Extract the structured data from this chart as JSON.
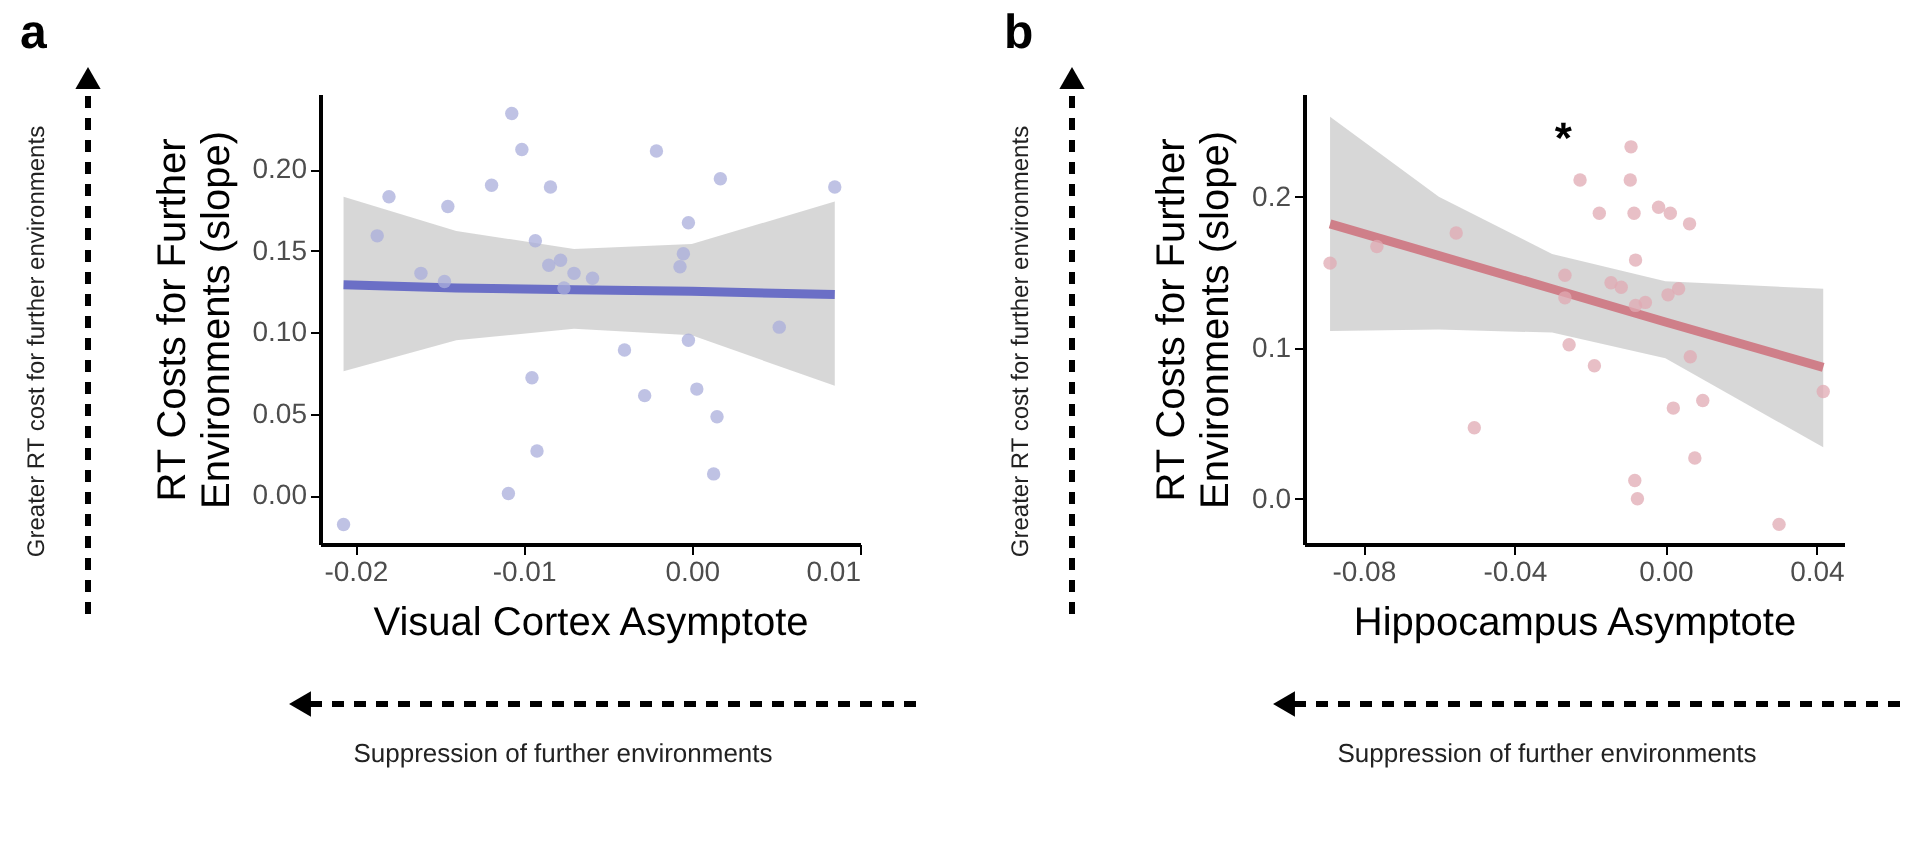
{
  "chart_data": [
    {
      "type": "scatter",
      "title": "a",
      "xlabel": "Visual Cortex Asymptote",
      "ylabel": "RT Costs for Further Environments (slope)",
      "xlim": [
        -0.0221,
        0.01
      ],
      "ylim": [
        -0.03,
        0.246
      ],
      "xticks": [
        -0.02,
        -0.01,
        {
          "value": 0,
          "label": "0.00"
        },
        0.01
      ],
      "yticks": [
        {
          "value": 0,
          "label": "0.00"
        },
        0.05,
        {
          "value": 0.1,
          "label": "0.10"
        },
        0.15,
        {
          "value": 0.2,
          "label": "0.20"
        }
      ],
      "grid": false,
      "annotations": [
        "Greater RT cost for further environments",
        "Suppression of further environments"
      ],
      "series": [
        {
          "type": "scatter",
          "color": "#aaaddb",
          "x": [
            -0.0207,
            -0.0187,
            -0.018,
            -0.0161,
            -0.0147,
            -0.0145,
            -0.0119,
            -0.0109,
            -0.0107,
            -0.0101,
            -0.0095,
            -0.0093,
            -0.0092,
            -0.0085,
            -0.0084,
            -0.0078,
            -0.0076,
            -0.007,
            -0.0059,
            -0.004,
            -0.0028,
            -0.0021,
            -0.0007,
            -0.0005,
            -0.0002,
            -0.0002,
            0.0003,
            0.0013,
            0.0015,
            0.0017,
            0.0052,
            0.0085
          ],
          "values": [
            -0.018,
            0.159,
            0.183,
            0.136,
            0.131,
            0.177,
            0.19,
            0.001,
            0.234,
            0.212,
            0.072,
            0.156,
            0.027,
            0.141,
            0.189,
            0.144,
            0.127,
            0.136,
            0.133,
            0.089,
            0.061,
            0.211,
            0.14,
            0.148,
            0.167,
            0.095,
            0.065,
            0.013,
            0.048,
            0.194,
            0.103,
            0.189
          ]
        },
        {
          "type": "line",
          "color": "#6b6fc6",
          "x": [
            -0.0207,
            -0.014,
            -0.007,
            0.0,
            0.0085
          ],
          "values": [
            0.129,
            0.127,
            0.126,
            0.125,
            0.123
          ],
          "lower": [
            0.076,
            0.095,
            0.102,
            0.098,
            0.067
          ],
          "upper": [
            0.183,
            0.162,
            0.151,
            0.154,
            0.18
          ]
        }
      ]
    },
    {
      "type": "scatter",
      "title": "b",
      "xlabel": "Hippocampus Asymptote",
      "ylabel": "RT Costs for Further Environments (slope)",
      "xlim": [
        -0.0957,
        0.0473
      ],
      "ylim": [
        -0.03,
        0.268
      ],
      "xticks": [
        -0.08,
        -0.04,
        {
          "value": 0,
          "label": "0.00"
        },
        0.04
      ],
      "yticks": [
        {
          "value": 0,
          "label": "0.0"
        },
        0.1,
        0.2
      ],
      "grid": false,
      "annotations": [
        "Greater RT cost for further environments",
        "Suppression of further environments",
        "*"
      ],
      "series": [
        {
          "type": "scatter",
          "color": "#e0a9b3",
          "x": [
            -0.0888,
            -0.0764,
            -0.0554,
            -0.0506,
            -0.0266,
            -0.0266,
            -0.0255,
            -0.0226,
            -0.0188,
            -0.0175,
            -0.0144,
            -0.0117,
            -0.0091,
            -0.0093,
            -0.0083,
            -0.0079,
            -0.0079,
            -0.0081,
            -0.0074,
            -0.0053,
            -0.0018,
            0.0007,
            0.0013,
            0.0021,
            0.0035,
            0.0064,
            0.0066,
            0.0078,
            0.0099,
            0.0301,
            0.0418
          ],
          "values": [
            0.156,
            0.167,
            0.176,
            0.047,
            0.148,
            0.133,
            0.102,
            0.211,
            0.088,
            0.189,
            0.143,
            0.14,
            0.233,
            0.211,
            0.189,
            0.158,
            0.128,
            0.012,
            0.0,
            0.13,
            0.193,
            0.135,
            0.189,
            0.06,
            0.139,
            0.182,
            0.094,
            0.027,
            0.065,
            -0.017,
            0.071
          ]
        },
        {
          "type": "line",
          "color": "#cf7f89",
          "x": [
            -0.0888,
            -0.06,
            -0.03,
            0.0,
            0.0418
          ],
          "values": [
            0.182,
            0.161,
            0.139,
            0.117,
            0.087
          ],
          "lower": [
            0.111,
            0.112,
            0.11,
            0.093,
            0.034
          ],
          "upper": [
            0.253,
            0.2,
            0.162,
            0.144,
            0.139
          ]
        }
      ]
    }
  ]
}
